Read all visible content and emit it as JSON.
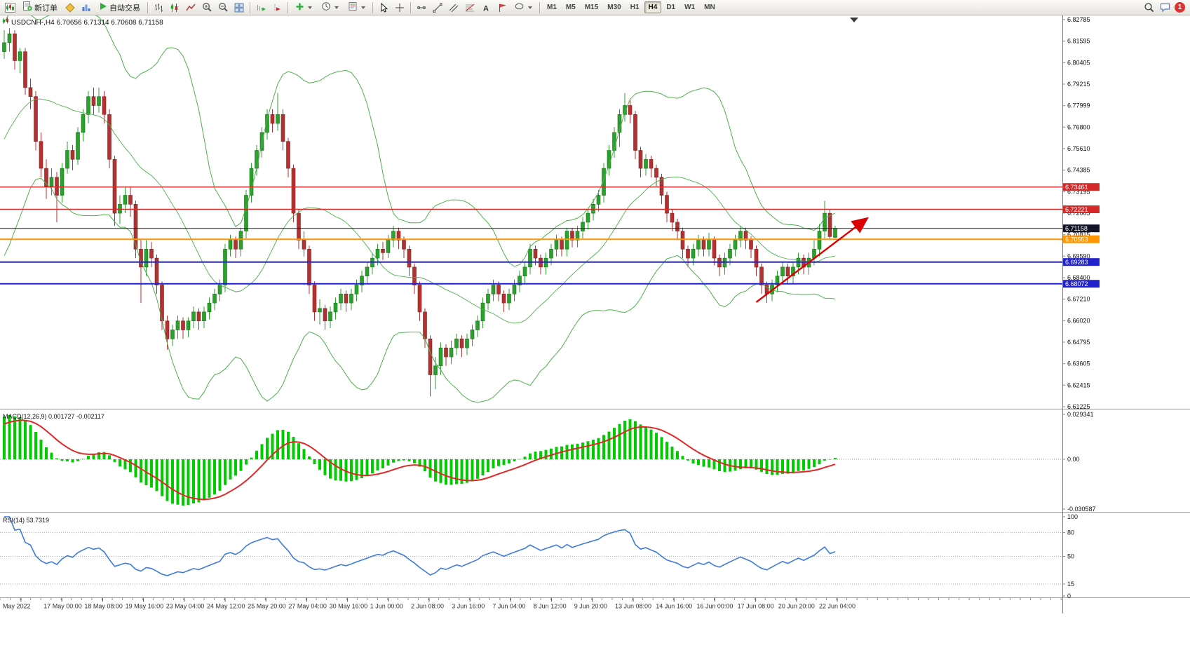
{
  "toolbar": {
    "buttons": {
      "new_order": "新订单",
      "auto_trading": "自动交易"
    },
    "timeframes": [
      "M1",
      "M5",
      "M15",
      "M30",
      "H1",
      "H4",
      "D1",
      "W1",
      "MN"
    ],
    "active_timeframe": "H4",
    "notification_badge": "1",
    "icons": [
      "chart-window",
      "new-order",
      "market",
      "history",
      "auto-trading-play",
      "bar-chart",
      "candlestick-chart",
      "line-chart",
      "zoom-in",
      "zoom-out",
      "tile-windows",
      "auto-scroll",
      "chart-shift",
      "add-indicator",
      "periods",
      "templates",
      "cursor",
      "crosshair",
      "horizontal-line",
      "trendline",
      "equidistant-channel",
      "fibonacci",
      "text",
      "label",
      "shapes",
      "search",
      "chat"
    ]
  },
  "chart_data": {
    "type": "candlestick",
    "title_symbol": "USDCNH-,H4",
    "title_ohlc": "6.70656 6.71314 6.70608 6.71158",
    "price_max": 6.82785,
    "price_min": 6.61225,
    "price_axis": [
      "6.82785",
      "6.81595",
      "6.80405",
      "6.79215",
      "6.77999",
      "6.76800",
      "6.75610",
      "6.74385",
      "6.73195",
      "6.72005",
      "6.70815",
      "6.69590",
      "6.68400",
      "6.67210",
      "6.66020",
      "6.64795",
      "6.63605",
      "6.62415",
      "6.61225"
    ],
    "bollinger": {
      "period": 20,
      "deviation": 2,
      "color": "#4db04d"
    },
    "up_color": "#2ca02c",
    "down_color": "#b23232",
    "horizontal_lines": [
      {
        "price": 6.73461,
        "label": "6.73461",
        "color": "#d42a2a",
        "width": 1.4
      },
      {
        "price": 6.72221,
        "label": "6.72221",
        "color": "#d42a2a",
        "width": 1.4
      },
      {
        "price": 6.70553,
        "label": "6.70553",
        "color": "#ff9500",
        "width": 2
      },
      {
        "price": 6.69283,
        "label": "6.69283",
        "color": "#2222cc",
        "width": 2
      },
      {
        "price": 6.68072,
        "label": "6.68072",
        "color": "#2222cc",
        "width": 2
      }
    ],
    "current_price": {
      "value": 6.71158,
      "label": "6.71158",
      "tag_color": "#141428"
    },
    "trend_arrow": {
      "from_index": 143,
      "from_price": 6.6705,
      "to_index": 164,
      "to_price": 6.717,
      "color": "#dd0000"
    },
    "macd": {
      "label": "MACD(12,26,9)",
      "value_main": "0.001727",
      "value_signal": "-0.002117",
      "axis": [
        "0.029341",
        "0.00",
        "-0.030587"
      ],
      "histogram_color": "#00cc00",
      "signal_color": "#e02828",
      "params": [
        12,
        26,
        9
      ]
    },
    "rsi": {
      "label": "RSI(14)",
      "value": "53.7319",
      "axis": [
        "100",
        "80",
        "50",
        "15",
        "0"
      ],
      "levels": [
        80,
        50,
        15
      ],
      "color": "#3d7bdc",
      "period": 14
    },
    "time_axis": [
      "May 2022",
      "17 May 00:00",
      "18 May 08:00",
      "19 May 16:00",
      "23 May 04:00",
      "24 May 12:00",
      "25 May 20:00",
      "27 May 04:00",
      "30 May 16:00",
      "1 Jun 00:00",
      "2 Jun 08:00",
      "3 Jun 16:00",
      "7 Jun 04:00",
      "8 Jun 12:00",
      "9 Jun 20:00",
      "13 Jun 08:00",
      "14 Jun 16:00",
      "16 Jun 00:00",
      "17 Jun 08:00",
      "20 Jun 20:00",
      "22 Jun 04:00"
    ],
    "candles": [
      [
        6.81,
        6.822,
        6.806,
        6.815
      ],
      [
        6.815,
        6.823,
        6.81,
        6.82
      ],
      [
        6.82,
        6.822,
        6.8,
        6.805
      ],
      [
        6.805,
        6.812,
        6.798,
        6.81
      ],
      [
        6.81,
        6.812,
        6.786,
        6.79
      ],
      [
        6.79,
        6.795,
        6.778,
        6.785
      ],
      [
        6.785,
        6.788,
        6.755,
        6.76
      ],
      [
        6.76,
        6.765,
        6.74,
        6.745
      ],
      [
        6.745,
        6.75,
        6.728,
        6.735
      ],
      [
        6.735,
        6.745,
        6.73,
        6.74
      ],
      [
        6.74,
        6.743,
        6.715,
        6.73
      ],
      [
        6.73,
        6.748,
        6.726,
        6.745
      ],
      [
        6.745,
        6.76,
        6.742,
        6.755
      ],
      [
        6.755,
        6.758,
        6.744,
        6.75
      ],
      [
        6.75,
        6.768,
        6.747,
        6.765
      ],
      [
        6.765,
        6.778,
        6.76,
        6.775
      ],
      [
        6.775,
        6.788,
        6.77,
        6.785
      ],
      [
        6.785,
        6.79,
        6.775,
        6.78
      ],
      [
        6.78,
        6.79,
        6.776,
        6.785
      ],
      [
        6.785,
        6.788,
        6.77,
        6.775
      ],
      [
        6.775,
        6.778,
        6.745,
        6.75
      ],
      [
        6.75,
        6.752,
        6.713,
        6.72
      ],
      [
        6.72,
        6.73,
        6.714,
        6.725
      ],
      [
        6.725,
        6.735,
        6.72,
        6.73
      ],
      [
        6.73,
        6.735,
        6.718,
        6.725
      ],
      [
        6.725,
        6.727,
        6.695,
        6.7
      ],
      [
        6.7,
        6.705,
        6.67,
        6.69
      ],
      [
        6.69,
        6.705,
        6.685,
        6.7
      ],
      [
        6.7,
        6.704,
        6.69,
        6.695
      ],
      [
        6.695,
        6.697,
        6.675,
        6.68
      ],
      [
        6.68,
        6.682,
        6.655,
        6.66
      ],
      [
        6.66,
        6.663,
        6.644,
        6.65
      ],
      [
        6.65,
        6.658,
        6.646,
        6.655
      ],
      [
        6.655,
        6.663,
        6.65,
        6.66
      ],
      [
        6.66,
        6.662,
        6.65,
        6.655
      ],
      [
        6.655,
        6.662,
        6.651,
        6.66
      ],
      [
        6.66,
        6.668,
        6.656,
        6.665
      ],
      [
        6.665,
        6.667,
        6.655,
        6.66
      ],
      [
        6.66,
        6.668,
        6.656,
        6.665
      ],
      [
        6.665,
        6.673,
        6.661,
        6.67
      ],
      [
        6.67,
        6.678,
        6.666,
        6.675
      ],
      [
        6.675,
        6.683,
        6.671,
        6.68
      ],
      [
        6.68,
        6.703,
        6.676,
        6.7
      ],
      [
        6.7,
        6.708,
        6.696,
        6.705
      ],
      [
        6.705,
        6.707,
        6.695,
        6.7
      ],
      [
        6.7,
        6.712,
        6.696,
        6.71
      ],
      [
        6.71,
        6.733,
        6.706,
        6.73
      ],
      [
        6.73,
        6.748,
        6.726,
        6.745
      ],
      [
        6.745,
        6.758,
        6.741,
        6.755
      ],
      [
        6.755,
        6.768,
        6.751,
        6.765
      ],
      [
        6.765,
        6.778,
        6.761,
        6.775
      ],
      [
        6.775,
        6.778,
        6.765,
        6.77
      ],
      [
        6.77,
        6.787,
        6.766,
        6.775
      ],
      [
        6.775,
        6.778,
        6.755,
        6.76
      ],
      [
        6.76,
        6.762,
        6.74,
        6.745
      ],
      [
        6.745,
        6.747,
        6.715,
        6.72
      ],
      [
        6.72,
        6.722,
        6.7,
        6.705
      ],
      [
        6.705,
        6.71,
        6.696,
        6.7
      ],
      [
        6.7,
        6.702,
        6.675,
        6.68
      ],
      [
        6.68,
        6.682,
        6.66,
        6.665
      ],
      [
        6.665,
        6.672,
        6.658,
        6.667
      ],
      [
        6.667,
        6.669,
        6.655,
        6.66
      ],
      [
        6.66,
        6.668,
        6.656,
        6.665
      ],
      [
        6.665,
        6.673,
        6.661,
        6.67
      ],
      [
        6.67,
        6.678,
        6.666,
        6.675
      ],
      [
        6.675,
        6.677,
        6.665,
        6.67
      ],
      [
        6.67,
        6.678,
        6.666,
        6.675
      ],
      [
        6.675,
        6.683,
        6.671,
        6.68
      ],
      [
        6.68,
        6.688,
        6.676,
        6.685
      ],
      [
        6.685,
        6.693,
        6.681,
        6.69
      ],
      [
        6.69,
        6.698,
        6.686,
        6.695
      ],
      [
        6.695,
        6.703,
        6.691,
        6.7
      ],
      [
        6.7,
        6.704,
        6.694,
        6.698
      ],
      [
        6.698,
        6.708,
        6.695,
        6.705
      ],
      [
        6.705,
        6.713,
        6.701,
        6.71
      ],
      [
        6.71,
        6.712,
        6.7,
        6.705
      ],
      [
        6.705,
        6.707,
        6.695,
        6.7
      ],
      [
        6.7,
        6.702,
        6.685,
        6.69
      ],
      [
        6.69,
        6.692,
        6.675,
        6.68
      ],
      [
        6.68,
        6.682,
        6.66,
        6.665
      ],
      [
        6.665,
        6.667,
        6.645,
        6.65
      ],
      [
        6.65,
        6.652,
        6.618,
        6.63
      ],
      [
        6.63,
        6.64,
        6.622,
        6.635
      ],
      [
        6.635,
        6.648,
        6.63,
        6.645
      ],
      [
        6.645,
        6.647,
        6.635,
        6.64
      ],
      [
        6.64,
        6.649,
        6.636,
        6.645
      ],
      [
        6.645,
        6.653,
        6.641,
        6.65
      ],
      [
        6.65,
        6.652,
        6.64,
        6.645
      ],
      [
        6.645,
        6.653,
        6.641,
        6.65
      ],
      [
        6.65,
        6.658,
        6.646,
        6.655
      ],
      [
        6.655,
        6.663,
        6.651,
        6.66
      ],
      [
        6.66,
        6.673,
        6.656,
        6.67
      ],
      [
        6.67,
        6.678,
        6.666,
        6.675
      ],
      [
        6.675,
        6.683,
        6.671,
        6.68
      ],
      [
        6.68,
        6.682,
        6.671,
        6.675
      ],
      [
        6.675,
        6.677,
        6.665,
        6.67
      ],
      [
        6.67,
        6.678,
        6.666,
        6.675
      ],
      [
        6.675,
        6.683,
        6.671,
        6.68
      ],
      [
        6.68,
        6.688,
        6.676,
        6.685
      ],
      [
        6.685,
        6.693,
        6.681,
        6.69
      ],
      [
        6.69,
        6.703,
        6.686,
        6.7
      ],
      [
        6.7,
        6.702,
        6.691,
        6.695
      ],
      [
        6.695,
        6.697,
        6.686,
        6.69
      ],
      [
        6.69,
        6.698,
        6.686,
        6.695
      ],
      [
        6.695,
        6.703,
        6.691,
        6.7
      ],
      [
        6.7,
        6.708,
        6.696,
        6.705
      ],
      [
        6.705,
        6.707,
        6.696,
        6.7
      ],
      [
        6.7,
        6.712,
        6.696,
        6.71
      ],
      [
        6.71,
        6.712,
        6.701,
        6.705
      ],
      [
        6.705,
        6.713,
        6.701,
        6.71
      ],
      [
        6.71,
        6.718,
        6.706,
        6.715
      ],
      [
        6.715,
        6.723,
        6.711,
        6.72
      ],
      [
        6.72,
        6.728,
        6.716,
        6.725
      ],
      [
        6.725,
        6.733,
        6.721,
        6.73
      ],
      [
        6.73,
        6.748,
        6.726,
        6.745
      ],
      [
        6.745,
        6.758,
        6.741,
        6.755
      ],
      [
        6.755,
        6.768,
        6.751,
        6.765
      ],
      [
        6.765,
        6.778,
        6.757,
        6.775
      ],
      [
        6.775,
        6.787,
        6.771,
        6.78
      ],
      [
        6.78,
        6.783,
        6.77,
        6.775
      ],
      [
        6.775,
        6.777,
        6.75,
        6.755
      ],
      [
        6.755,
        6.757,
        6.74,
        6.745
      ],
      [
        6.745,
        6.753,
        6.741,
        6.75
      ],
      [
        6.75,
        6.752,
        6.74,
        6.745
      ],
      [
        6.745,
        6.747,
        6.735,
        6.74
      ],
      [
        6.74,
        6.742,
        6.725,
        6.73
      ],
      [
        6.73,
        6.732,
        6.715,
        6.72
      ],
      [
        6.72,
        6.722,
        6.71,
        6.715
      ],
      [
        6.715,
        6.717,
        6.705,
        6.71
      ],
      [
        6.71,
        6.712,
        6.695,
        6.7
      ],
      [
        6.7,
        6.702,
        6.69,
        6.695
      ],
      [
        6.695,
        6.703,
        6.691,
        6.7
      ],
      [
        6.7,
        6.708,
        6.696,
        6.705
      ],
      [
        6.705,
        6.707,
        6.696,
        6.7
      ],
      [
        6.7,
        6.709,
        6.696,
        6.705
      ],
      [
        6.705,
        6.707,
        6.691,
        6.695
      ],
      [
        6.695,
        6.697,
        6.685,
        6.69
      ],
      [
        6.69,
        6.698,
        6.686,
        6.695
      ],
      [
        6.695,
        6.703,
        6.691,
        6.7
      ],
      [
        6.7,
        6.708,
        6.696,
        6.705
      ],
      [
        6.705,
        6.713,
        6.701,
        6.71
      ],
      [
        6.71,
        6.712,
        6.7,
        6.705
      ],
      [
        6.705,
        6.707,
        6.695,
        6.7
      ],
      [
        6.7,
        6.702,
        6.685,
        6.69
      ],
      [
        6.69,
        6.692,
        6.675,
        6.68
      ],
      [
        6.68,
        6.682,
        6.67,
        6.675
      ],
      [
        6.675,
        6.683,
        6.671,
        6.68
      ],
      [
        6.68,
        6.688,
        6.676,
        6.685
      ],
      [
        6.685,
        6.693,
        6.681,
        6.69
      ],
      [
        6.69,
        6.692,
        6.681,
        6.685
      ],
      [
        6.685,
        6.693,
        6.681,
        6.69
      ],
      [
        6.69,
        6.698,
        6.686,
        6.695
      ],
      [
        6.695,
        6.697,
        6.686,
        6.69
      ],
      [
        6.69,
        6.698,
        6.686,
        6.695
      ],
      [
        6.695,
        6.705,
        6.691,
        6.7
      ],
      [
        6.7,
        6.714,
        6.696,
        6.71
      ],
      [
        6.71,
        6.727,
        6.706,
        6.72
      ],
      [
        6.72,
        6.722,
        6.705,
        6.707
      ],
      [
        6.70656,
        6.71314,
        6.70608,
        6.71158
      ]
    ]
  }
}
